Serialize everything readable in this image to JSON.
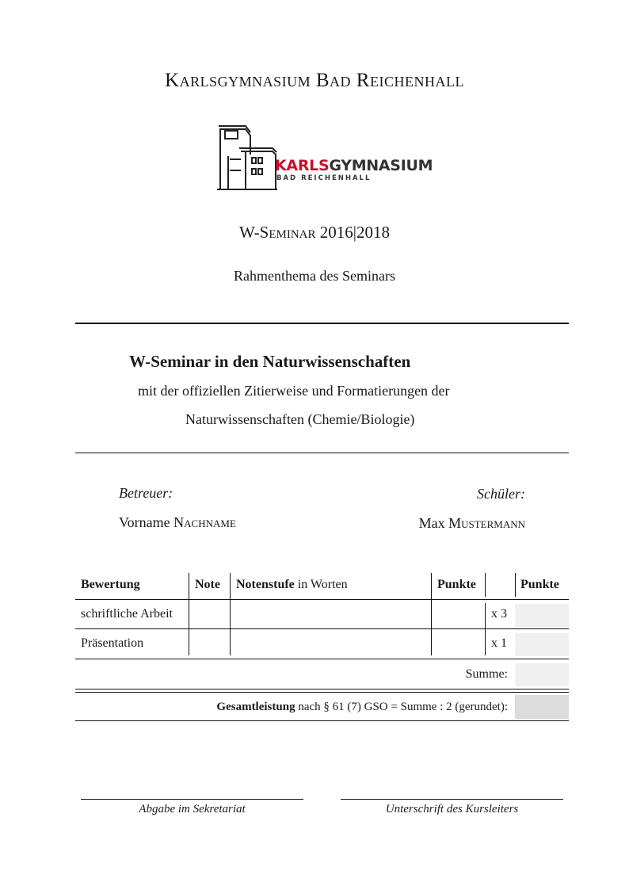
{
  "school_title": "Karlsgymnasium Bad Reichenhall",
  "logo": {
    "name_red": "KARLS",
    "name_dark": "GYMNASIUM",
    "subline": "BAD REICHENHALL",
    "red": "#c8102e",
    "dark": "#333333"
  },
  "seminar_label": "W-Seminar",
  "seminar_years": "2016|2018",
  "rahmenthema": "Rahmenthema des Seminars",
  "thesis_title": "W-Seminar in den Naturwissenschaften",
  "subtitle_line1": "mit der offiziellen Zitierweise und Formatierungen der",
  "subtitle_line2": "Naturwissenschaften (Chemie/Biologie)",
  "betreuer": {
    "label": "Betreuer:",
    "first": "Vorname",
    "last": "Nachname"
  },
  "schueler": {
    "label": "Schüler:",
    "first": "Max",
    "last": "Mustermann"
  },
  "table": {
    "headers": {
      "bewertung": "Bewertung",
      "note": "Note",
      "notenstufe_bold": "Notenstufe",
      "notenstufe_rest": " in Worten",
      "punkte": "Punkte",
      "punkte2": "Punkte"
    },
    "rows": [
      {
        "label": "schriftliche Arbeit",
        "factor": "x 3"
      },
      {
        "label": "Präsentation",
        "factor": "x 1"
      }
    ],
    "summe": "Summe:",
    "gesamt_bold": "Gesamtleistung",
    "gesamt_rest": " nach § 61 (7) GSO = Summe : 2 (gerundet):"
  },
  "signatures": {
    "left": "Abgabe im Sekretariat",
    "right": "Unterschrift des Kursleiters"
  }
}
